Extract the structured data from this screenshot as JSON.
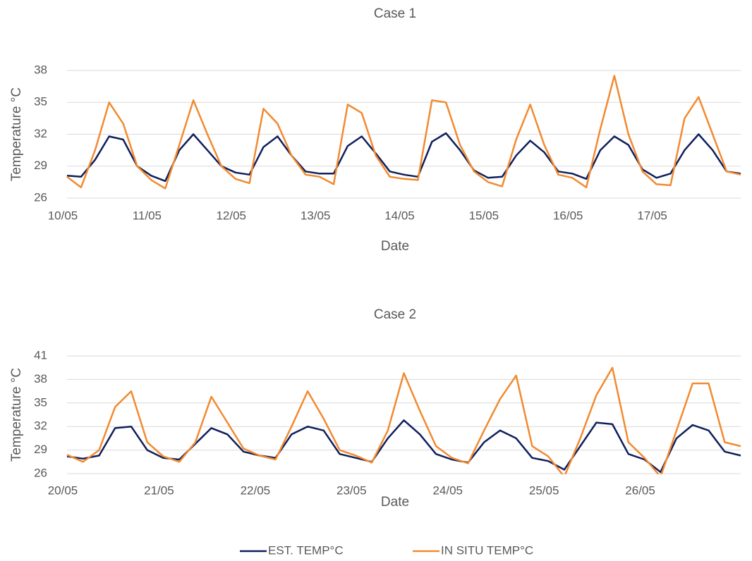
{
  "chart_data": [
    {
      "type": "line",
      "title": "Case 1",
      "x_label": "Date",
      "y_label": "Temperature °C",
      "categories": [
        "10/05",
        null,
        null,
        null,
        null,
        null,
        "11/05",
        null,
        null,
        null,
        null,
        null,
        "12/05",
        null,
        null,
        null,
        null,
        null,
        "13/05",
        null,
        null,
        null,
        null,
        null,
        "14/05",
        null,
        null,
        null,
        null,
        null,
        "15/05",
        null,
        null,
        null,
        null,
        null,
        "16/05",
        null,
        null,
        null,
        null,
        null,
        "17/05",
        null,
        null,
        null,
        null,
        null,
        null
      ],
      "ylim": [
        26,
        38
      ],
      "yticks": [
        26,
        29,
        32,
        35,
        38
      ],
      "grid": true,
      "series": [
        {
          "name": "EST. TEMP°C",
          "color": "#0f1f5c",
          "values": [
            28.1,
            28.0,
            29.6,
            31.8,
            31.5,
            29.0,
            28.1,
            27.6,
            30.5,
            32.0,
            30.5,
            29.0,
            28.4,
            28.2,
            30.8,
            31.8,
            30.0,
            28.5,
            28.3,
            28.3,
            30.9,
            31.8,
            30.2,
            28.5,
            28.2,
            28.0,
            31.3,
            32.1,
            30.5,
            28.6,
            27.9,
            28.0,
            30.0,
            31.4,
            30.3,
            28.5,
            28.3,
            27.8,
            30.5,
            31.8,
            31.0,
            28.7,
            27.9,
            28.3,
            30.5,
            32.0,
            30.5,
            28.5,
            28.3
          ]
        },
        {
          "name": "IN SITU TEMP°C",
          "color": "#f28a30",
          "values": [
            28.0,
            27.0,
            30.5,
            35.0,
            33.0,
            29.0,
            27.7,
            26.9,
            31.0,
            35.2,
            32.0,
            29.0,
            27.8,
            27.4,
            34.4,
            33.0,
            30.0,
            28.2,
            28.0,
            27.3,
            34.8,
            34.0,
            30.0,
            28.0,
            27.8,
            27.7,
            35.2,
            35.0,
            31.0,
            28.5,
            27.5,
            27.1,
            31.5,
            34.8,
            31.0,
            28.2,
            27.9,
            27.0,
            32.5,
            37.5,
            32.0,
            28.5,
            27.3,
            27.2,
            33.5,
            35.5,
            32.0,
            28.5,
            28.2
          ]
        }
      ]
    },
    {
      "type": "line",
      "title": "Case 2",
      "x_label": "Date",
      "y_label": "Temperature °C",
      "categories": [
        "20/05",
        null,
        null,
        null,
        null,
        null,
        "21/05",
        null,
        null,
        null,
        null,
        null,
        "22/05",
        null,
        null,
        null,
        null,
        null,
        "23/05",
        null,
        null,
        null,
        null,
        null,
        "24/05",
        null,
        null,
        null,
        null,
        null,
        "25/05",
        null,
        null,
        null,
        null,
        null,
        "26/05",
        null,
        null,
        null,
        null,
        null,
        null
      ],
      "ylim": [
        26,
        41
      ],
      "yticks": [
        26,
        29,
        32,
        35,
        38,
        41
      ],
      "grid": true,
      "series": [
        {
          "color": "#0f1f5c",
          "values": [
            28.2,
            27.9,
            28.3,
            31.8,
            32.0,
            29.0,
            28.0,
            27.8,
            29.8,
            31.8,
            31.0,
            28.8,
            28.3,
            28.0,
            31.0,
            32.0,
            31.5,
            28.5,
            28.0,
            27.5,
            30.5,
            32.8,
            31.0,
            28.5,
            27.8,
            27.4,
            30.0,
            31.5,
            30.5,
            28.0,
            27.6,
            26.5,
            29.5,
            32.5,
            32.3,
            28.5,
            27.8,
            26.2,
            30.5,
            32.2,
            31.5,
            28.8,
            28.3
          ]
        },
        {
          "color": "#f28a30",
          "values": [
            28.4,
            27.5,
            29.0,
            34.5,
            36.5,
            30.0,
            28.2,
            27.5,
            30.0,
            35.8,
            32.5,
            29.2,
            28.3,
            27.8,
            32.0,
            36.5,
            33.0,
            29.0,
            28.3,
            27.4,
            31.5,
            38.8,
            34.0,
            29.5,
            28.0,
            27.3,
            31.5,
            35.5,
            38.5,
            29.5,
            28.2,
            25.6,
            30.5,
            36.0,
            39.5,
            30.0,
            28.0,
            25.6,
            31.5,
            37.5,
            37.5,
            30.0,
            29.5
          ]
        }
      ]
    }
  ]
}
